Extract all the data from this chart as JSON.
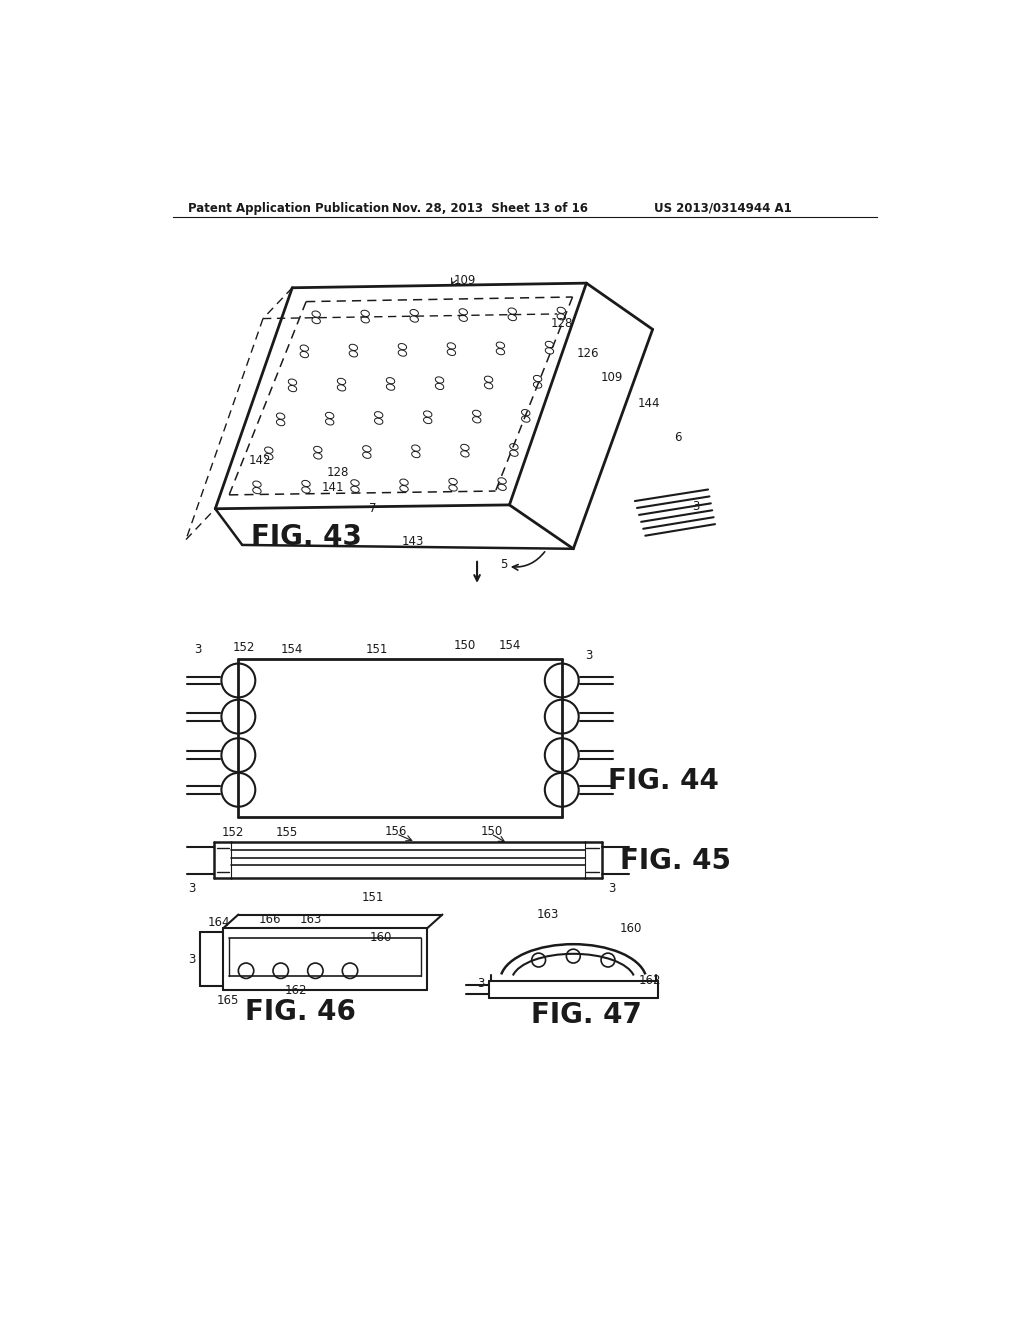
{
  "bg_color": "#ffffff",
  "header_left": "Patent Application Publication",
  "header_mid": "Nov. 28, 2013  Sheet 13 of 16",
  "header_right": "US 2013/0314944 A1",
  "fig43_label": "FIG. 43",
  "fig44_label": "FIG. 44",
  "fig45_label": "FIG. 45",
  "fig46_label": "FIG. 46",
  "fig47_label": "FIG. 47",
  "line_color": "#1a1a1a",
  "text_color": "#1a1a1a"
}
